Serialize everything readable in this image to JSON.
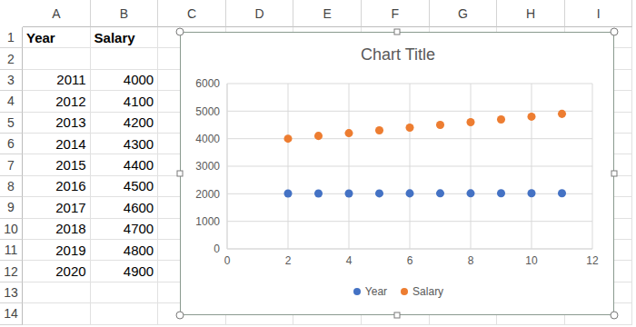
{
  "sheet": {
    "columns": [
      "A",
      "B",
      "C",
      "D",
      "E",
      "F",
      "G",
      "H",
      "I"
    ],
    "rows": [
      1,
      2,
      3,
      4,
      5,
      6,
      7,
      8,
      9,
      10,
      11,
      12,
      13,
      14
    ],
    "cells": [
      [
        "Year",
        "Salary"
      ],
      [
        null,
        null
      ],
      [
        2011,
        4000
      ],
      [
        2012,
        4100
      ],
      [
        2013,
        4200
      ],
      [
        2014,
        4300
      ],
      [
        2015,
        4400
      ],
      [
        2016,
        4500
      ],
      [
        2017,
        4600
      ],
      [
        2018,
        4700
      ],
      [
        2019,
        4800
      ],
      [
        2020,
        4900
      ],
      [
        null,
        null
      ],
      [
        null,
        null
      ]
    ]
  },
  "chart_data": {
    "type": "scatter",
    "title": "Chart Title",
    "x": [
      2,
      3,
      4,
      5,
      6,
      7,
      8,
      9,
      10,
      11
    ],
    "series": [
      {
        "name": "Year",
        "color": "#4472c4",
        "values": [
          2011,
          2012,
          2013,
          2014,
          2015,
          2016,
          2017,
          2018,
          2019,
          2020
        ]
      },
      {
        "name": "Salary",
        "color": "#ed7d31",
        "values": [
          4000,
          4100,
          4200,
          4300,
          4400,
          4500,
          4600,
          4700,
          4800,
          4900
        ]
      }
    ],
    "xlim": [
      0,
      12
    ],
    "xticks": [
      0,
      2,
      4,
      6,
      8,
      10,
      12
    ],
    "ylim": [
      0,
      6000
    ],
    "yticks": [
      0,
      1000,
      2000,
      3000,
      4000,
      5000,
      6000
    ],
    "grid": true,
    "legend": "bottom",
    "marker": "circle"
  }
}
